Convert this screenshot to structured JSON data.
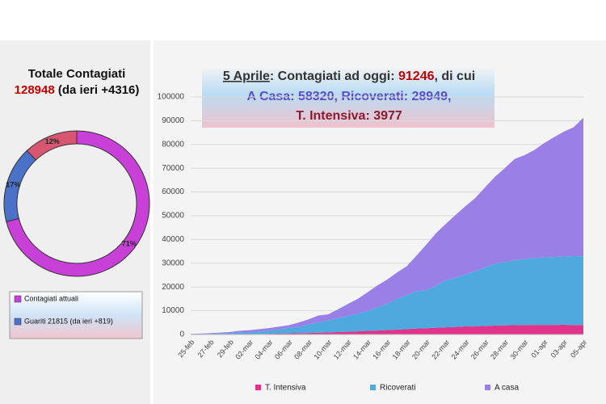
{
  "chart_data": [
    {
      "type": "pie",
      "donut": true,
      "title": "Totale Contagiati",
      "total": "128948",
      "total_change": "(da ieri +4316)",
      "categories": [
        "Contagiati attuali",
        "Guariti 21815 (da ieri +819)",
        null
      ],
      "values": [
        71,
        17,
        12
      ],
      "value_labels": [
        "71%",
        "17%",
        "12%"
      ],
      "colors": [
        "#c940d8",
        "#4a72c9",
        "#d8566f"
      ]
    },
    {
      "type": "stacked_area",
      "title_lines": [
        [
          "5 Aprile",
          ": Contagiati ad oggi: ",
          "91246",
          ", di cui"
        ],
        [
          "A Casa: ",
          "58320",
          ", Ricoverati: ",
          "28949",
          ","
        ],
        [
          "T. Intensiva: ",
          "3977"
        ]
      ],
      "categories": [
        "25-feb",
        null,
        "27-feb",
        null,
        "29-feb",
        null,
        "02-mar",
        null,
        "04-mar",
        null,
        "06-mar",
        null,
        "08-mar",
        null,
        "10-mar",
        null,
        "12-mar",
        null,
        "14-mar",
        null,
        "16-mar",
        null,
        "18-mar",
        null,
        "20-mar",
        null,
        "22-mar",
        null,
        "24-mar",
        null,
        "26-mar",
        null,
        "28-mar",
        null,
        "30-mar",
        null,
        "01-apr",
        null,
        "03-apr",
        null,
        "05-apr"
      ],
      "series": [
        {
          "name": "T. Intensiva",
          "color": "#e0338a",
          "values": [
            35,
            36,
            56,
            64,
            105,
            140,
            166,
            229,
            295,
            351,
            462,
            567,
            650,
            733,
            877,
            1028,
            1153,
            1328,
            1518,
            1672,
            1851,
            2060,
            2257,
            2498,
            2655,
            2857,
            3009,
            3204,
            3396,
            3489,
            3612,
            3732,
            3856,
            3906,
            3981,
            4023,
            4035,
            4053,
            4068,
            3994,
            3977
          ]
        },
        {
          "name": "Ricoverati",
          "color": "#4ea9de",
          "values": [
            114,
            128,
            248,
            345,
            401,
            639,
            742,
            1034,
            1346,
            1790,
            2394,
            2651,
            3557,
            4316,
            5038,
            5838,
            6650,
            7426,
            8372,
            9663,
            11025,
            12894,
            14363,
            15757,
            16020,
            17708,
            19846,
            20692,
            21937,
            23112,
            24753,
            26029,
            26676,
            27386,
            27795,
            28192,
            28403,
            28540,
            28741,
            29010,
            28949
          ]
        },
        {
          "name": "A casa",
          "color": "#9a80e6",
          "values": [
            162,
            221,
            284,
            412,
            543,
            798,
            927,
            1000,
            1065,
            1155,
            1060,
            1843,
            2180,
            2936,
            2599,
            3724,
            5036,
            6201,
            7860,
            9268,
            10197,
            11108,
            12090,
            14935,
            19185,
            22116,
            23783,
            26522,
            28697,
            30920,
            33648,
            36653,
            39533,
            42588,
            43752,
            45420,
            48134,
            50456,
            52579,
            54237,
            58320
          ]
        }
      ],
      "ylim": [
        0,
        100000
      ],
      "yticks": [
        0,
        10000,
        20000,
        30000,
        40000,
        50000,
        60000,
        70000,
        80000,
        90000,
        100000
      ],
      "grid": true
    }
  ]
}
